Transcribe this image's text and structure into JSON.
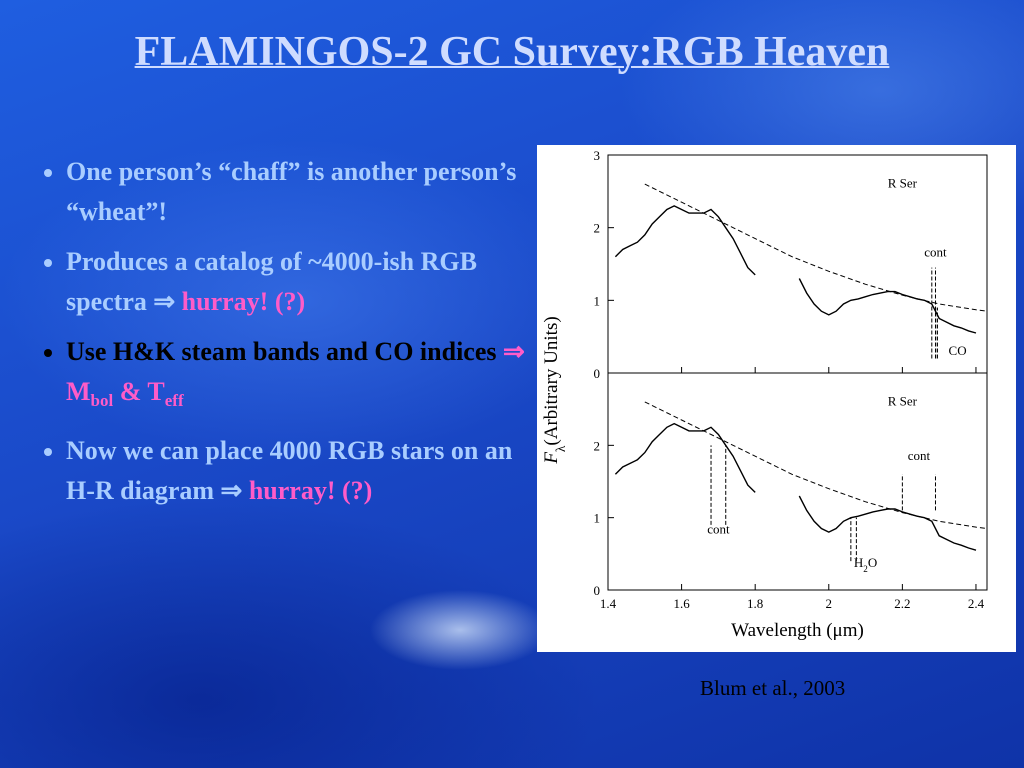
{
  "title": "FLAMINGOS-2 GC Survey:RGB Heaven",
  "bullets": [
    [
      {
        "text": "One person’s “chaff” is another person’s “wheat”!",
        "color": "#a9cdff"
      }
    ],
    [
      {
        "text": "Produces a catalog of ~4000-ish RGB spectra ⇒ ",
        "color": "#a9cdff"
      },
      {
        "text": "hurray! (?)",
        "color": "#ff5cc8"
      }
    ],
    [
      {
        "text": "Use H&K steam bands and CO indices ",
        "color": "#000000"
      },
      {
        "text": "⇒ M",
        "color": "#ff5cc8"
      },
      {
        "text": "bol",
        "color": "#ff5cc8",
        "sub": true
      },
      {
        "text": " & T",
        "color": "#ff5cc8"
      },
      {
        "text": "eff",
        "color": "#ff5cc8",
        "sub": true
      }
    ],
    [
      {
        "text": "Now we can place 4000 RGB stars on an H-R diagram ⇒ ",
        "color": "#a9cdff"
      },
      {
        "text": "hurray! (?)",
        "color": "#ff5cc8"
      }
    ]
  ],
  "credit": "Blum et al., 2003",
  "y_label": [
    {
      "text": "F",
      "italic": true
    },
    {
      "text": "λ",
      "sub": true
    },
    {
      "text": "(Arbitrary Units)"
    }
  ],
  "chart_data": [
    {
      "type": "line",
      "xlim": [
        1.4,
        2.43
      ],
      "ylim": [
        0,
        3
      ],
      "yticks": [
        0,
        1,
        2,
        3
      ],
      "xticks": [
        1.4,
        1.6,
        1.8,
        2,
        2.2,
        2.4
      ],
      "xtick_labels": false,
      "series": [
        {
          "color": "#000000",
          "dash": false,
          "x": [
            1.42,
            1.44,
            1.46,
            1.48,
            1.5,
            1.52,
            1.54,
            1.56,
            1.58,
            1.6,
            1.62,
            1.64,
            1.66,
            1.68,
            1.7,
            1.72,
            1.74,
            1.76,
            1.78,
            1.8,
            1.86,
            1.92,
            1.94,
            1.96,
            1.98,
            2,
            2.02,
            2.04,
            2.06,
            2.08,
            2.1,
            2.12,
            2.14,
            2.16,
            2.18,
            2.2,
            2.22,
            2.24,
            2.26,
            2.28,
            2.3,
            2.32,
            2.34,
            2.36,
            2.38,
            2.4
          ],
          "values": [
            1.6,
            1.7,
            1.75,
            1.8,
            1.9,
            2.05,
            2.15,
            2.25,
            2.3,
            2.25,
            2.2,
            2.2,
            2.2,
            2.25,
            2.15,
            2.0,
            1.85,
            1.65,
            1.45,
            1.35,
            null,
            1.3,
            1.1,
            0.95,
            0.85,
            0.8,
            0.85,
            0.95,
            1.0,
            1.02,
            1.05,
            1.08,
            1.1,
            1.12,
            1.12,
            1.08,
            1.05,
            1.02,
            1.0,
            0.95,
            0.75,
            0.7,
            0.65,
            0.62,
            0.58,
            0.55
          ]
        },
        {
          "color": "#000000",
          "dash": true,
          "x": [
            1.5,
            1.6,
            1.7,
            1.8,
            1.9,
            2,
            2.1,
            2.2,
            2.3,
            2.4,
            2.43
          ],
          "values": [
            2.6,
            2.35,
            2.1,
            1.85,
            1.6,
            1.4,
            1.22,
            1.07,
            0.95,
            0.87,
            0.85
          ]
        }
      ],
      "annotations": [
        {
          "runs": [
            {
              "text": "R Ser"
            }
          ],
          "x": 2.2,
          "y": 2.55
        },
        {
          "runs": [
            {
              "text": "cont"
            }
          ],
          "x": 2.29,
          "y": 1.6
        },
        {
          "runs": [
            {
              "text": "CO"
            }
          ],
          "x": 2.35,
          "y": 0.25
        }
      ],
      "bands": [
        {
          "x": [
            2.28,
            2.29
          ],
          "y": [
            0.2,
            1.45
          ]
        },
        {
          "x": [
            2.295,
            2.295
          ],
          "y": [
            0.2,
            0.9
          ]
        }
      ]
    },
    {
      "type": "line",
      "xlim": [
        1.4,
        2.43
      ],
      "ylim": [
        0,
        3
      ],
      "yticks": [
        0,
        1,
        2
      ],
      "xticks": [
        1.4,
        1.6,
        1.8,
        2,
        2.2,
        2.4
      ],
      "xtick_labels": true,
      "x_label": "Wavelength (μm)",
      "series": [
        {
          "color": "#000000",
          "dash": false,
          "x": [
            1.42,
            1.44,
            1.46,
            1.48,
            1.5,
            1.52,
            1.54,
            1.56,
            1.58,
            1.6,
            1.62,
            1.64,
            1.66,
            1.68,
            1.7,
            1.72,
            1.74,
            1.76,
            1.78,
            1.8,
            1.86,
            1.92,
            1.94,
            1.96,
            1.98,
            2,
            2.02,
            2.04,
            2.06,
            2.08,
            2.1,
            2.12,
            2.14,
            2.16,
            2.18,
            2.2,
            2.22,
            2.24,
            2.26,
            2.28,
            2.3,
            2.32,
            2.34,
            2.36,
            2.38,
            2.4
          ],
          "values": [
            1.6,
            1.7,
            1.75,
            1.8,
            1.9,
            2.05,
            2.15,
            2.25,
            2.3,
            2.25,
            2.2,
            2.2,
            2.2,
            2.25,
            2.15,
            2.0,
            1.85,
            1.65,
            1.45,
            1.35,
            null,
            1.3,
            1.1,
            0.95,
            0.85,
            0.8,
            0.85,
            0.95,
            1.0,
            1.02,
            1.05,
            1.08,
            1.1,
            1.12,
            1.12,
            1.08,
            1.05,
            1.02,
            1.0,
            0.95,
            0.75,
            0.7,
            0.65,
            0.62,
            0.58,
            0.55
          ]
        },
        {
          "color": "#000000",
          "dash": true,
          "x": [
            1.5,
            1.6,
            1.7,
            1.8,
            1.9,
            2,
            2.1,
            2.2,
            2.3,
            2.4,
            2.43
          ],
          "values": [
            2.6,
            2.35,
            2.1,
            1.85,
            1.6,
            1.4,
            1.22,
            1.07,
            0.95,
            0.87,
            0.85
          ]
        }
      ],
      "annotations": [
        {
          "runs": [
            {
              "text": "R Ser"
            }
          ],
          "x": 2.2,
          "y": 2.55
        },
        {
          "runs": [
            {
              "text": "cont"
            }
          ],
          "x": 1.7,
          "y": 0.78
        },
        {
          "runs": [
            {
              "text": "cont"
            }
          ],
          "x": 2.245,
          "y": 1.8
        },
        {
          "runs": [
            {
              "text": "H"
            },
            {
              "text": "2",
              "sub": true
            },
            {
              "text": "O"
            }
          ],
          "x": 2.1,
          "y": 0.32
        }
      ],
      "bands": [
        {
          "x": [
            1.68,
            1.72
          ],
          "y": [
            0.9,
            2.0
          ]
        },
        {
          "x": [
            2.2,
            2.29
          ],
          "y": [
            1.1,
            1.6
          ]
        },
        {
          "x": [
            2.06,
            2.075
          ],
          "y": [
            0.4,
            1.0
          ]
        }
      ]
    }
  ]
}
